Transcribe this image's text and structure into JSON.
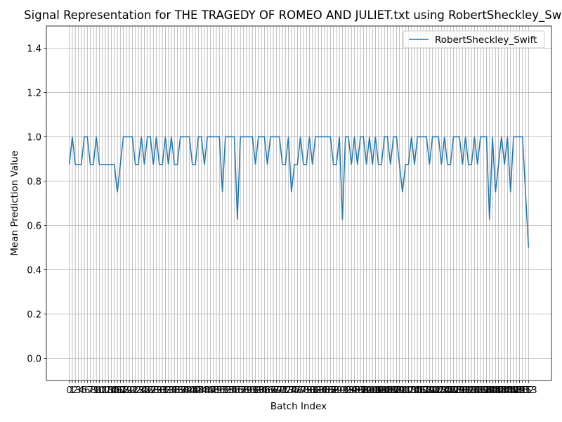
{
  "chart_data": {
    "type": "line",
    "title": "Signal Representation for THE TRAGEDY OF ROMEO AND JULIET.txt using RobertSheckley_Swift",
    "x_label": "Batch Index",
    "y_label": "Mean Prediction Value",
    "x": [
      0,
      1,
      2,
      3,
      4,
      5,
      6,
      7,
      8,
      9,
      10,
      11,
      12,
      13,
      14,
      15,
      16,
      17,
      18,
      19,
      20,
      21,
      22,
      23,
      24,
      25,
      26,
      27,
      28,
      29,
      30,
      31,
      32,
      33,
      34,
      35,
      36,
      37,
      38,
      39,
      40,
      41,
      42,
      43,
      44,
      45,
      46,
      47,
      48,
      49,
      50,
      51,
      52,
      53,
      54,
      55,
      56,
      57,
      58,
      59,
      60,
      61,
      62,
      63,
      64,
      65,
      66,
      67,
      68,
      69,
      70,
      71,
      72,
      73,
      74,
      75,
      76,
      77,
      78,
      79,
      80,
      81,
      82,
      83,
      84,
      85,
      86,
      87,
      88,
      89,
      90,
      91,
      92,
      93,
      94,
      95,
      96,
      97,
      98,
      99,
      100,
      101,
      102,
      103,
      104,
      105,
      106,
      107,
      108,
      109,
      110,
      111,
      112,
      113,
      114,
      115,
      116,
      117,
      118,
      119,
      120,
      121,
      122,
      123,
      124,
      125,
      126,
      127,
      128,
      129,
      130,
      131,
      132,
      133,
      134,
      135,
      136,
      137,
      138,
      139,
      140,
      141,
      142,
      143,
      144,
      145,
      146,
      147,
      148,
      149,
      150,
      151,
      152,
      153
    ],
    "series": [
      {
        "name": "RobertSheckley_Swift",
        "color": "#1f77b4",
        "values": [
          0.875,
          1,
          0.875,
          0.875,
          0.875,
          1,
          1,
          0.875,
          0.875,
          1,
          0.875,
          0.875,
          0.875,
          0.875,
          0.875,
          0.875,
          0.75,
          0.875,
          1,
          1,
          1,
          1,
          0.875,
          0.875,
          1,
          0.875,
          1,
          1,
          0.875,
          1,
          0.875,
          0.875,
          1,
          0.875,
          1,
          0.875,
          0.875,
          1,
          1,
          1,
          1,
          0.875,
          0.875,
          1,
          1,
          0.875,
          1,
          1,
          1,
          1,
          1,
          0.75,
          1,
          1,
          1,
          1,
          0.625,
          1,
          1,
          1,
          1,
          1,
          0.875,
          1,
          1,
          1,
          0.875,
          1,
          1,
          1,
          1,
          0.875,
          0.875,
          1,
          0.75,
          0.875,
          0.875,
          1,
          0.875,
          0.875,
          1,
          0.875,
          1,
          1,
          1,
          1,
          1,
          1,
          0.875,
          0.875,
          1,
          0.625,
          1,
          1,
          0.875,
          1,
          0.875,
          1,
          1,
          0.875,
          1,
          0.875,
          1,
          0.875,
          0.875,
          1,
          1,
          0.875,
          1,
          1,
          0.875,
          0.75,
          0.875,
          0.875,
          1,
          0.875,
          1,
          1,
          1,
          1,
          0.875,
          1,
          1,
          1,
          0.875,
          1,
          0.875,
          0.875,
          1,
          1,
          1,
          0.875,
          1,
          0.875,
          0.875,
          1,
          0.875,
          1,
          1,
          1,
          0.625,
          1,
          0.75,
          0.875,
          1,
          0.875,
          1,
          0.75,
          1,
          1,
          1,
          1,
          0.75,
          0.5
        ]
      }
    ],
    "xlim": [
      -7.65,
      160.65
    ],
    "xticks": [
      0,
      1,
      2,
      3,
      4,
      5,
      6,
      7,
      8,
      9,
      10,
      11,
      12,
      13,
      14,
      15,
      16,
      17,
      18,
      19,
      20,
      21,
      22,
      23,
      24,
      25,
      26,
      27,
      28,
      29,
      30,
      31,
      32,
      33,
      34,
      35,
      36,
      37,
      38,
      39,
      40,
      41,
      42,
      43,
      44,
      45,
      46,
      47,
      48,
      49,
      50,
      51,
      52,
      53,
      54,
      55,
      56,
      57,
      58,
      59,
      60,
      61,
      62,
      63,
      64,
      65,
      66,
      67,
      68,
      69,
      70,
      71,
      72,
      73,
      74,
      75,
      76,
      77,
      78,
      79,
      80,
      81,
      82,
      83,
      84,
      85,
      86,
      87,
      88,
      89,
      90,
      91,
      92,
      93,
      94,
      95,
      96,
      97,
      98,
      99,
      100,
      101,
      102,
      103,
      104,
      105,
      106,
      107,
      108,
      109,
      110,
      111,
      112,
      113,
      114,
      115,
      116,
      117,
      118,
      119,
      120,
      121,
      122,
      123,
      124,
      125,
      126,
      127,
      128,
      129,
      130,
      131,
      132,
      133,
      134,
      135,
      136,
      137,
      138,
      139,
      140,
      141,
      142,
      143,
      144,
      145,
      146,
      147,
      148,
      149,
      150,
      151,
      152,
      153
    ],
    "ylim": [
      -0.1,
      1.5
    ],
    "yticks": [
      {
        "value": 0,
        "label": "0.0"
      },
      0.2,
      0.4,
      0.6,
      0.8,
      {
        "value": 1,
        "label": "1.0"
      },
      1.2,
      1.4
    ],
    "grid": true,
    "legend": "upper right"
  }
}
